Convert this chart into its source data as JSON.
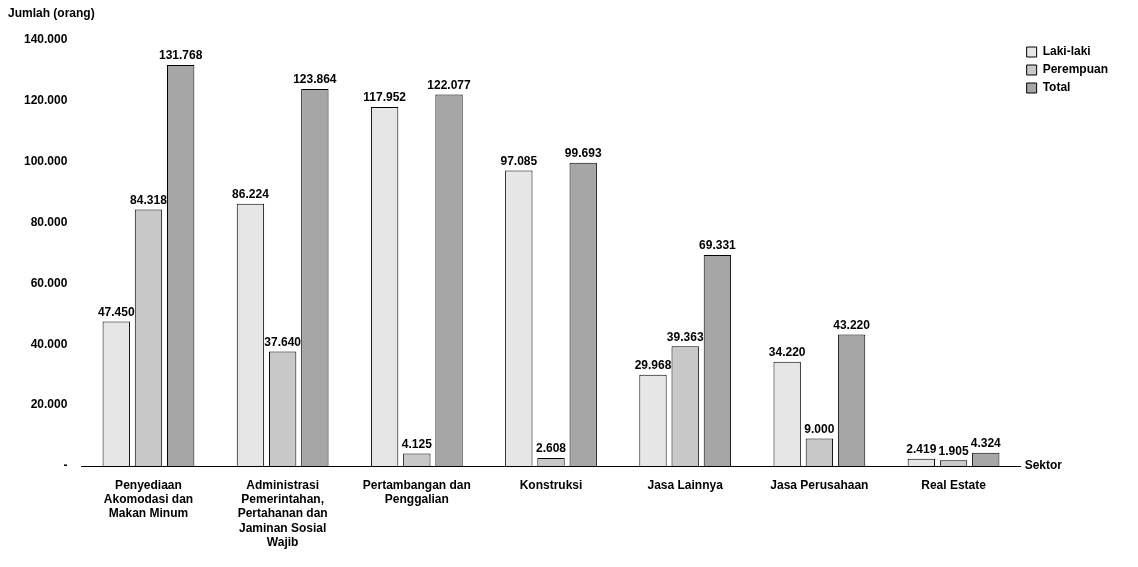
{
  "chart_data": {
    "type": "bar",
    "ylabel": "Jumlah (orang)",
    "xlabel": "Sektor",
    "categories": [
      "Penyediaan Akomodasi dan Makan Minum",
      "Administrasi Pemerintahan, Pertahanan dan Jaminan Sosial Wajib",
      "Pertambangan dan Penggalian",
      "Konstruksi",
      "Jasa Lainnya",
      "Jasa Perusahaan",
      "Real Estate"
    ],
    "series": [
      {
        "name": "Laki-laki",
        "color": "#e6e6e6",
        "values": [
          47450,
          86224,
          117952,
          97085,
          29968,
          34220,
          2419
        ],
        "value_labels": [
          "47.450",
          "86.224",
          "117.952",
          "97.085",
          "29.968",
          "34.220",
          "2.419"
        ]
      },
      {
        "name": "Perempuan",
        "color": "#c8c8c8",
        "values": [
          84318,
          37640,
          4125,
          2608,
          39363,
          9000,
          1905
        ],
        "value_labels": [
          "84.318",
          "37.640",
          "4.125",
          "2.608",
          "39.363",
          "9.000",
          "1.905"
        ]
      },
      {
        "name": "Total",
        "color": "#a6a6a6",
        "values": [
          131768,
          123864,
          122077,
          99693,
          69331,
          43220,
          4324
        ],
        "value_labels": [
          "131.768",
          "123.864",
          "122.077",
          "99.693",
          "69.331",
          "43.220",
          "4.324"
        ]
      }
    ],
    "ylim": [
      0,
      140000
    ],
    "yticks": [
      {
        "value": 0,
        "label": "-"
      },
      {
        "value": 20000,
        "label": "20.000"
      },
      {
        "value": 40000,
        "label": "40.000"
      },
      {
        "value": 60000,
        "label": "60.000"
      },
      {
        "value": 80000,
        "label": "80.000"
      },
      {
        "value": 100000,
        "label": "100.000"
      },
      {
        "value": 120000,
        "label": "120.000"
      },
      {
        "value": 140000,
        "label": "140.000"
      }
    ],
    "grid": false,
    "legend": "right"
  }
}
